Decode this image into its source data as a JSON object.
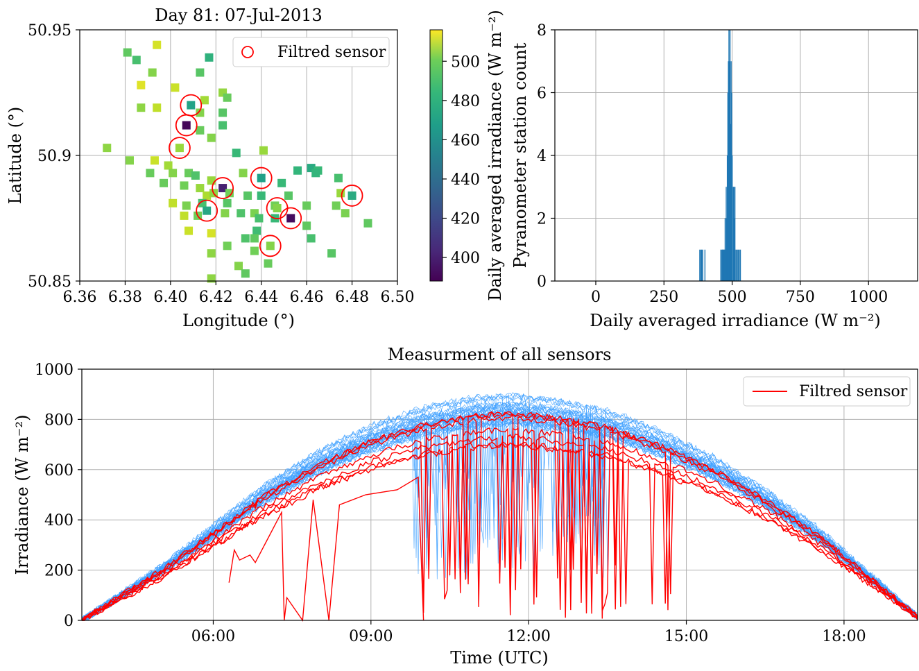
{
  "chart_data": [
    {
      "type": "scatter",
      "title": "Day 81: 07-Jul-2013",
      "xlabel": "Longitude (°)",
      "ylabel": "Latitude (°)",
      "xlim": [
        6.36,
        6.5
      ],
      "ylim": [
        50.85,
        50.95
      ],
      "xticks": [
        "6.36",
        "6.38",
        "6.40",
        "6.42",
        "6.44",
        "6.46",
        "6.48",
        "6.50"
      ],
      "yticks": [
        "50.85",
        "50.9",
        "50.95"
      ],
      "grid": true,
      "legend": {
        "entries": [
          "Filtred sensor"
        ],
        "placement": "top-right"
      },
      "colorbar": {
        "label": "Daily averaged irradiance (W m⁻²)",
        "ticks": [
          "400",
          "420",
          "440",
          "460",
          "480",
          "500"
        ],
        "range": [
          388,
          516
        ],
        "colormap": "viridis"
      },
      "points": [
        {
          "x": 6.385,
          "y": 50.938,
          "v": 478
        },
        {
          "x": 6.381,
          "y": 50.941,
          "v": 484
        },
        {
          "x": 6.394,
          "y": 50.944,
          "v": 508
        },
        {
          "x": 6.392,
          "y": 50.933,
          "v": 492
        },
        {
          "x": 6.417,
          "y": 50.939,
          "v": 470
        },
        {
          "x": 6.413,
          "y": 50.933,
          "v": 482
        },
        {
          "x": 6.387,
          "y": 50.928,
          "v": 510
        },
        {
          "x": 6.402,
          "y": 50.927,
          "v": 506
        },
        {
          "x": 6.423,
          "y": 50.925,
          "v": 495
        },
        {
          "x": 6.425,
          "y": 50.923,
          "v": 486
        },
        {
          "x": 6.415,
          "y": 50.922,
          "v": 498
        },
        {
          "x": 6.387,
          "y": 50.919,
          "v": 494
        },
        {
          "x": 6.394,
          "y": 50.919,
          "v": 504
        },
        {
          "x": 6.409,
          "y": 50.92,
          "v": 462,
          "filtered": true
        },
        {
          "x": 6.423,
          "y": 50.917,
          "v": 482
        },
        {
          "x": 6.413,
          "y": 50.917,
          "v": 492
        },
        {
          "x": 6.407,
          "y": 50.912,
          "v": 390,
          "filtered": true
        },
        {
          "x": 6.413,
          "y": 50.91,
          "v": 486
        },
        {
          "x": 6.423,
          "y": 50.912,
          "v": 478
        },
        {
          "x": 6.418,
          "y": 50.907,
          "v": 492
        },
        {
          "x": 6.404,
          "y": 50.903,
          "v": 496,
          "filtered": true
        },
        {
          "x": 6.372,
          "y": 50.903,
          "v": 494
        },
        {
          "x": 6.382,
          "y": 50.898,
          "v": 492
        },
        {
          "x": 6.393,
          "y": 50.898,
          "v": 506
        },
        {
          "x": 6.399,
          "y": 50.896,
          "v": 498
        },
        {
          "x": 6.429,
          "y": 50.901,
          "v": 474
        },
        {
          "x": 6.441,
          "y": 50.902,
          "v": 496
        },
        {
          "x": 6.391,
          "y": 50.893,
          "v": 486
        },
        {
          "x": 6.401,
          "y": 50.893,
          "v": 492
        },
        {
          "x": 6.408,
          "y": 50.893,
          "v": 486
        },
        {
          "x": 6.411,
          "y": 50.892,
          "v": 480
        },
        {
          "x": 6.418,
          "y": 50.89,
          "v": 496
        },
        {
          "x": 6.432,
          "y": 50.893,
          "v": 492
        },
        {
          "x": 6.44,
          "y": 50.891,
          "v": 460,
          "filtered": true
        },
        {
          "x": 6.456,
          "y": 50.894,
          "v": 472
        },
        {
          "x": 6.462,
          "y": 50.895,
          "v": 466
        },
        {
          "x": 6.465,
          "y": 50.894,
          "v": 474
        },
        {
          "x": 6.464,
          "y": 50.893,
          "v": 472
        },
        {
          "x": 6.474,
          "y": 50.891,
          "v": 478
        },
        {
          "x": 6.397,
          "y": 50.889,
          "v": 486
        },
        {
          "x": 6.406,
          "y": 50.888,
          "v": 488
        },
        {
          "x": 6.423,
          "y": 50.887,
          "v": 400,
          "filtered": true
        },
        {
          "x": 6.413,
          "y": 50.887,
          "v": 496
        },
        {
          "x": 6.449,
          "y": 50.889,
          "v": 474
        },
        {
          "x": 6.416,
          "y": 50.884,
          "v": 500
        },
        {
          "x": 6.419,
          "y": 50.885,
          "v": 494
        },
        {
          "x": 6.426,
          "y": 50.885,
          "v": 488
        },
        {
          "x": 6.434,
          "y": 50.884,
          "v": 482
        },
        {
          "x": 6.44,
          "y": 50.884,
          "v": 474
        },
        {
          "x": 6.452,
          "y": 50.884,
          "v": 482
        },
        {
          "x": 6.475,
          "y": 50.885,
          "v": 496
        },
        {
          "x": 6.48,
          "y": 50.884,
          "v": 466,
          "filtered": true
        },
        {
          "x": 6.401,
          "y": 50.881,
          "v": 504
        },
        {
          "x": 6.407,
          "y": 50.88,
          "v": 490
        },
        {
          "x": 6.414,
          "y": 50.881,
          "v": 478
        },
        {
          "x": 6.425,
          "y": 50.881,
          "v": 482
        },
        {
          "x": 6.446,
          "y": 50.88,
          "v": 488
        },
        {
          "x": 6.447,
          "y": 50.879,
          "v": 492,
          "filtered": true
        },
        {
          "x": 6.46,
          "y": 50.88,
          "v": 486
        },
        {
          "x": 6.473,
          "y": 50.88,
          "v": 488
        },
        {
          "x": 6.412,
          "y": 50.876,
          "v": 488
        },
        {
          "x": 6.416,
          "y": 50.878,
          "v": 464,
          "filtered": true
        },
        {
          "x": 6.406,
          "y": 50.876,
          "v": 504
        },
        {
          "x": 6.424,
          "y": 50.877,
          "v": 492
        },
        {
          "x": 6.431,
          "y": 50.877,
          "v": 480
        },
        {
          "x": 6.437,
          "y": 50.877,
          "v": 490
        },
        {
          "x": 6.439,
          "y": 50.875,
          "v": 478
        },
        {
          "x": 6.446,
          "y": 50.875,
          "v": 474
        },
        {
          "x": 6.453,
          "y": 50.875,
          "v": 392,
          "filtered": true
        },
        {
          "x": 6.477,
          "y": 50.877,
          "v": 490
        },
        {
          "x": 6.487,
          "y": 50.873,
          "v": 484
        },
        {
          "x": 6.418,
          "y": 50.869,
          "v": 508
        },
        {
          "x": 6.408,
          "y": 50.87,
          "v": 506
        },
        {
          "x": 6.438,
          "y": 50.87,
          "v": 476
        },
        {
          "x": 6.46,
          "y": 50.872,
          "v": 484
        },
        {
          "x": 6.433,
          "y": 50.867,
          "v": 480
        },
        {
          "x": 6.437,
          "y": 50.867,
          "v": 484
        },
        {
          "x": 6.462,
          "y": 50.867,
          "v": 478
        },
        {
          "x": 6.425,
          "y": 50.864,
          "v": 488
        },
        {
          "x": 6.444,
          "y": 50.864,
          "v": 492,
          "filtered": true
        },
        {
          "x": 6.418,
          "y": 50.861,
          "v": 494
        },
        {
          "x": 6.437,
          "y": 50.862,
          "v": 488
        },
        {
          "x": 6.471,
          "y": 50.861,
          "v": 482
        },
        {
          "x": 6.43,
          "y": 50.856,
          "v": 492
        },
        {
          "x": 6.443,
          "y": 50.857,
          "v": 486
        },
        {
          "x": 6.433,
          "y": 50.853,
          "v": 484
        },
        {
          "x": 6.418,
          "y": 50.851,
          "v": 494
        }
      ]
    },
    {
      "type": "bar",
      "xlabel": "Daily averaged irradiance (W m⁻²)",
      "ylabel": "Pyranometer station count",
      "xlim": [
        -150,
        1180
      ],
      "ylim": [
        0,
        8
      ],
      "xticks": [
        "0",
        "250",
        "500",
        "750",
        "1000"
      ],
      "yticks": [
        "0",
        "2",
        "4",
        "6",
        "8"
      ],
      "grid": true,
      "color": "#1f77b4",
      "bins": [
        {
          "x": 381,
          "c": 1
        },
        {
          "x": 385,
          "c": 1
        },
        {
          "x": 388,
          "c": 1
        },
        {
          "x": 392,
          "c": 1
        },
        {
          "x": 400,
          "c": 1
        },
        {
          "x": 458,
          "c": 1
        },
        {
          "x": 462,
          "c": 1
        },
        {
          "x": 464,
          "c": 1
        },
        {
          "x": 466,
          "c": 1
        },
        {
          "x": 468,
          "c": 1
        },
        {
          "x": 470,
          "c": 1
        },
        {
          "x": 472,
          "c": 1
        },
        {
          "x": 474,
          "c": 2
        },
        {
          "x": 476,
          "c": 1
        },
        {
          "x": 478,
          "c": 3
        },
        {
          "x": 480,
          "c": 2
        },
        {
          "x": 482,
          "c": 4
        },
        {
          "x": 484,
          "c": 6
        },
        {
          "x": 486,
          "c": 7
        },
        {
          "x": 488,
          "c": 8
        },
        {
          "x": 490,
          "c": 7
        },
        {
          "x": 492,
          "c": 8
        },
        {
          "x": 494,
          "c": 5
        },
        {
          "x": 496,
          "c": 7
        },
        {
          "x": 498,
          "c": 6
        },
        {
          "x": 500,
          "c": 4
        },
        {
          "x": 504,
          "c": 3
        },
        {
          "x": 506,
          "c": 3
        },
        {
          "x": 508,
          "c": 2
        },
        {
          "x": 510,
          "c": 3
        },
        {
          "x": 514,
          "c": 1
        },
        {
          "x": 518,
          "c": 1
        },
        {
          "x": 522,
          "c": 1
        },
        {
          "x": 526,
          "c": 1
        },
        {
          "x": 530,
          "c": 1
        }
      ]
    },
    {
      "type": "line",
      "title": "Measurment of all sensors",
      "xlabel": "Time (UTC)",
      "ylabel": "Irradiance (W m⁻²)",
      "xlim": [
        3.5,
        19.4
      ],
      "ylim": [
        0,
        1000
      ],
      "xticks": [
        {
          "v": 6,
          "label": "06:00"
        },
        {
          "v": 9,
          "label": "09:00"
        },
        {
          "v": 12,
          "label": "12:00"
        },
        {
          "v": 15,
          "label": "15:00"
        },
        {
          "v": 18,
          "label": "18:00"
        }
      ],
      "yticks": [
        "0",
        "200",
        "400",
        "600",
        "800",
        "1000"
      ],
      "grid": true,
      "legend": {
        "entries": [
          "Filtred sensor"
        ],
        "placement": "top-right"
      },
      "colors": {
        "all": "#3ea0ff",
        "filtered": "#ff0000"
      },
      "all_sensors_peak": [
        {
          "t": 3.5,
          "v": 0
        },
        {
          "t": 5,
          "v": 210
        },
        {
          "t": 6,
          "v": 370
        },
        {
          "t": 7,
          "v": 530
        },
        {
          "t": 8,
          "v": 660
        },
        {
          "t": 9,
          "v": 760
        },
        {
          "t": 10,
          "v": 830
        },
        {
          "t": 11,
          "v": 870
        },
        {
          "t": 11.7,
          "v": 880
        },
        {
          "t": 12.5,
          "v": 860
        },
        {
          "t": 13.5,
          "v": 820
        },
        {
          "t": 14.5,
          "v": 740
        },
        {
          "t": 15.5,
          "v": 640
        },
        {
          "t": 16.5,
          "v": 510
        },
        {
          "t": 17.5,
          "v": 360
        },
        {
          "t": 18.5,
          "v": 180
        },
        {
          "t": 19.4,
          "v": 15
        }
      ],
      "filtered_irregular": [
        {
          "t": 6.3,
          "v": 150
        },
        {
          "t": 6.4,
          "v": 280
        },
        {
          "t": 6.5,
          "v": 240
        },
        {
          "t": 6.7,
          "v": 260
        },
        {
          "t": 6.8,
          "v": 230
        },
        {
          "t": 7.3,
          "v": 430
        },
        {
          "t": 7.35,
          "v": 0
        },
        {
          "t": 7.4,
          "v": 90
        },
        {
          "t": 7.7,
          "v": 0
        },
        {
          "t": 7.9,
          "v": 480
        },
        {
          "t": 8.2,
          "v": 0
        },
        {
          "t": 8.4,
          "v": 460
        },
        {
          "t": 8.9,
          "v": 500
        },
        {
          "t": 9.5,
          "v": 520
        },
        {
          "t": 9.9,
          "v": 570
        },
        {
          "t": 10,
          "v": 0
        }
      ]
    }
  ]
}
